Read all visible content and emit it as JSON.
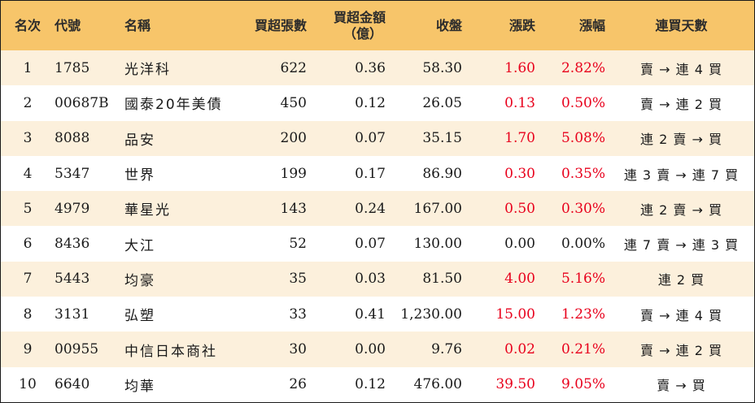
{
  "table": {
    "headers": {
      "rank": "名次",
      "code": "代號",
      "name": "名稱",
      "net_lots": "買超張數",
      "net_amount_line1": "買超金額",
      "net_amount_line2": "（億）",
      "close": "收盤",
      "change": "漲跌",
      "pct": "漲幅",
      "streak": "連買天數"
    },
    "rows": [
      {
        "rank": "1",
        "code": "1785",
        "name": "光洋科",
        "lots": "622",
        "amount": "0.36",
        "close": "58.30",
        "change": "1.60",
        "pct": "2.82%",
        "streak": "賣 → 連 4 買",
        "up": true
      },
      {
        "rank": "2",
        "code": "00687B",
        "name": "國泰20年美債",
        "lots": "450",
        "amount": "0.12",
        "close": "26.05",
        "change": "0.13",
        "pct": "0.50%",
        "streak": "賣 → 連 2 買",
        "up": true
      },
      {
        "rank": "3",
        "code": "8088",
        "name": "品安",
        "lots": "200",
        "amount": "0.07",
        "close": "35.15",
        "change": "1.70",
        "pct": "5.08%",
        "streak": "連 2 賣 → 買",
        "up": true
      },
      {
        "rank": "4",
        "code": "5347",
        "name": "世界",
        "lots": "199",
        "amount": "0.17",
        "close": "86.90",
        "change": "0.30",
        "pct": "0.35%",
        "streak": "連 3 賣 → 連 7 買",
        "up": true
      },
      {
        "rank": "5",
        "code": "4979",
        "name": "華星光",
        "lots": "143",
        "amount": "0.24",
        "close": "167.00",
        "change": "0.50",
        "pct": "0.30%",
        "streak": "連 2 賣 → 買",
        "up": true
      },
      {
        "rank": "6",
        "code": "8436",
        "name": "大江",
        "lots": "52",
        "amount": "0.07",
        "close": "130.00",
        "change": "0.00",
        "pct": "0.00%",
        "streak": "連 7 賣 → 連 3 買",
        "up": false
      },
      {
        "rank": "7",
        "code": "5443",
        "name": "均豪",
        "lots": "35",
        "amount": "0.03",
        "close": "81.50",
        "change": "4.00",
        "pct": "5.16%",
        "streak": "連 2 買",
        "up": true
      },
      {
        "rank": "8",
        "code": "3131",
        "name": "弘塑",
        "lots": "33",
        "amount": "0.41",
        "close": "1,230.00",
        "change": "15.00",
        "pct": "1.23%",
        "streak": "賣 → 連 4 買",
        "up": true
      },
      {
        "rank": "9",
        "code": "00955",
        "name": "中信日本商社",
        "lots": "30",
        "amount": "0.00",
        "close": "9.76",
        "change": "0.02",
        "pct": "0.21%",
        "streak": "賣 → 連 2 買",
        "up": true
      },
      {
        "rank": "10",
        "code": "6640",
        "name": "均華",
        "lots": "26",
        "amount": "0.12",
        "close": "476.00",
        "change": "39.50",
        "pct": "9.05%",
        "streak": "賣 → 買",
        "up": true
      }
    ]
  },
  "colors": {
    "header_bg": "#f7c56a",
    "stripe_bg": "#fcf0dc",
    "up": "#e8001c",
    "flat": "#1a1a1a"
  }
}
